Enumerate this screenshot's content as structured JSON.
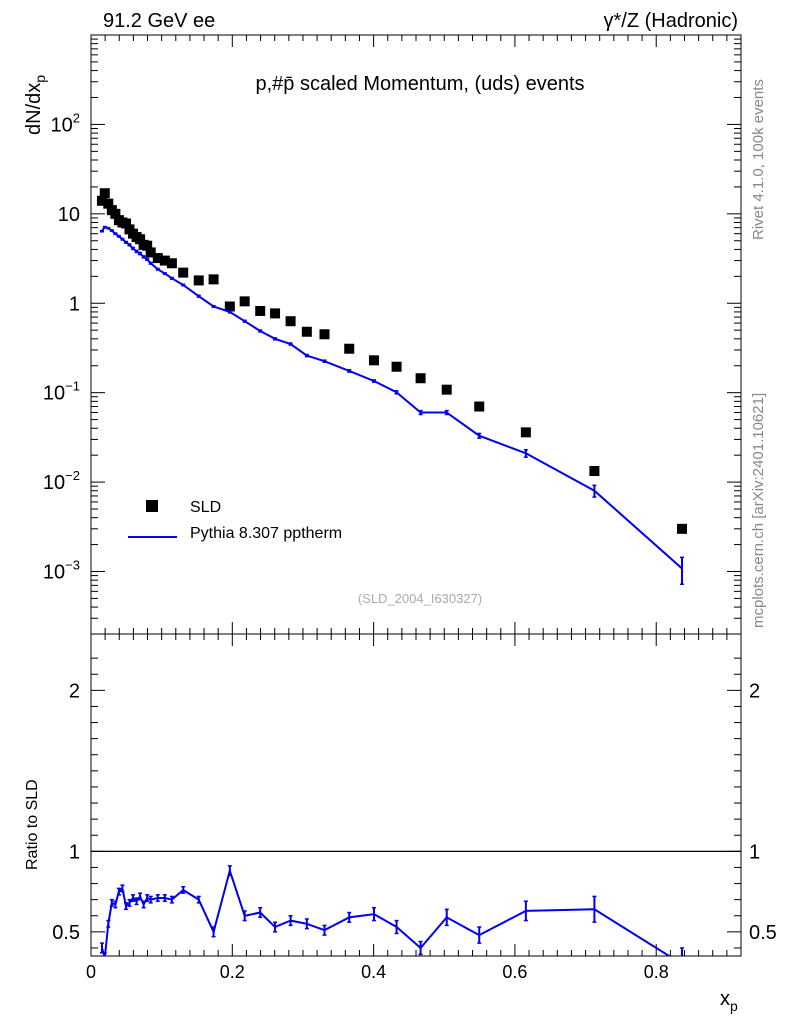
{
  "header": {
    "left": "91.2 GeV ee",
    "right": "γ*/Z (Hadronic)"
  },
  "side": {
    "rivet": "Rivet 4.1.0,  100k events",
    "mcplots": "mcplots.cern.ch [arXiv:2401.10621]"
  },
  "chart_data": [
    {
      "type": "scatter",
      "title": "p,#p̄ scaled Momentum, (uds) events",
      "ylabel": "dN/dx_p",
      "xlabel": "x_p",
      "ylog": true,
      "ylim": [
        0.0002,
        1000
      ],
      "xlim": [
        0,
        0.92
      ],
      "reference": "(SLD_2004_I630327)",
      "x_ticks": [
        "0",
        "0.2",
        "0.4",
        "0.6",
        "0.8"
      ],
      "x_tick_values": [
        0,
        0.2,
        0.4,
        0.6,
        0.8
      ],
      "y_ticks": [
        {
          "label": "10",
          "sup": "2",
          "value": 100
        },
        {
          "label": "10",
          "sup": "",
          "value": 10
        },
        {
          "label": "1",
          "sup": "",
          "value": 1
        },
        {
          "label": "10",
          "sup": "−1",
          "value": 0.1
        },
        {
          "label": "10",
          "sup": "−2",
          "value": 0.01
        },
        {
          "label": "10",
          "sup": "−3",
          "value": 0.001
        }
      ],
      "legend": [
        {
          "name": "SLD",
          "style": "marker"
        },
        {
          "name": "Pythia 8.307 pptherm",
          "style": "line"
        }
      ],
      "series": [
        {
          "name": "SLD",
          "color": "#000000",
          "x": [
            0.0155,
            0.0195,
            0.0245,
            0.0295,
            0.0345,
            0.0395,
            0.0445,
            0.0495,
            0.0545,
            0.0595,
            0.0645,
            0.0695,
            0.0745,
            0.0795,
            0.0845,
            0.0945,
            0.1045,
            0.1145,
            0.1305,
            0.1525,
            0.1735,
            0.1965,
            0.2175,
            0.2395,
            0.2605,
            0.2825,
            0.3055,
            0.3305,
            0.3655,
            0.4005,
            0.4325,
            0.4665,
            0.5035,
            0.5495,
            0.6155,
            0.7125,
            0.8365
          ],
          "y": [
            14,
            17,
            13,
            11,
            10,
            8.5,
            8,
            7.8,
            6.7,
            6.0,
            5.5,
            5.2,
            4.5,
            4.4,
            3.7,
            3.2,
            3.0,
            2.8,
            2.2,
            1.8,
            1.85,
            0.92,
            1.05,
            0.82,
            0.77,
            0.63,
            0.48,
            0.45,
            0.31,
            0.23,
            0.195,
            0.145,
            0.108,
            0.07,
            0.036,
            0.0133,
            0.003
          ]
        },
        {
          "name": "Pythia 8.307 pptherm",
          "color": "#0000ee",
          "x": [
            0.0155,
            0.0195,
            0.0245,
            0.0295,
            0.0345,
            0.0395,
            0.0445,
            0.0495,
            0.0545,
            0.0595,
            0.0645,
            0.0695,
            0.0745,
            0.0795,
            0.0845,
            0.0945,
            0.1045,
            0.1145,
            0.1305,
            0.1525,
            0.1735,
            0.1965,
            0.2175,
            0.2395,
            0.2605,
            0.2825,
            0.3055,
            0.3305,
            0.3655,
            0.4005,
            0.4325,
            0.4665,
            0.5035,
            0.5495,
            0.6155,
            0.7125,
            0.8365
          ],
          "y": [
            6.4,
            7.1,
            6.9,
            6.5,
            6.0,
            5.6,
            5.2,
            4.8,
            4.5,
            4.1,
            3.8,
            3.6,
            3.3,
            3.1,
            2.8,
            2.4,
            2.15,
            1.9,
            1.6,
            1.2,
            0.92,
            0.8,
            0.63,
            0.49,
            0.4,
            0.35,
            0.26,
            0.225,
            0.175,
            0.135,
            0.101,
            0.06,
            0.06,
            0.033,
            0.021,
            0.008,
            0.00108
          ],
          "err": [
            0.1,
            0.1,
            0.1,
            0.1,
            0.1,
            0.1,
            0.1,
            0.1,
            0.1,
            0.1,
            0.1,
            0.1,
            0.08,
            0.07,
            0.06,
            0.05,
            0.04,
            0.04,
            0.03,
            0.03,
            0.02,
            0.02,
            0.015,
            0.012,
            0.01,
            0.009,
            0.007,
            0.006,
            0.005,
            0.004,
            0.004,
            0.003,
            0.003,
            0.002,
            0.002,
            0.0012,
            0.00036
          ]
        }
      ]
    },
    {
      "type": "line",
      "ylabel": "Ratio to SLD",
      "ylim": [
        0.35,
        2.35
      ],
      "xlim": [
        0,
        0.92
      ],
      "reference_line": 1,
      "y_ticks": [
        "0.5",
        "1",
        "2"
      ],
      "y_tick_values": [
        0.5,
        1,
        2
      ],
      "series": [
        {
          "name": "Pythia 8.307 pptherm / SLD",
          "color": "#0000ee",
          "x": [
            0.0155,
            0.0195,
            0.0245,
            0.0295,
            0.0345,
            0.0395,
            0.0445,
            0.0495,
            0.0545,
            0.0595,
            0.0645,
            0.0695,
            0.0745,
            0.0795,
            0.0845,
            0.0945,
            0.1045,
            0.1145,
            0.1305,
            0.1525,
            0.1735,
            0.1965,
            0.2175,
            0.2395,
            0.2605,
            0.2825,
            0.3055,
            0.3305,
            0.3655,
            0.4005,
            0.4325,
            0.4665,
            0.5035,
            0.5495,
            0.6155,
            0.7125,
            0.8365
          ],
          "y": [
            0.4,
            0.34,
            0.55,
            0.68,
            0.67,
            0.75,
            0.77,
            0.66,
            0.68,
            0.71,
            0.69,
            0.72,
            0.67,
            0.71,
            0.7,
            0.71,
            0.71,
            0.7,
            0.76,
            0.7,
            0.5,
            0.88,
            0.6,
            0.62,
            0.53,
            0.57,
            0.55,
            0.51,
            0.59,
            0.61,
            0.53,
            0.4,
            0.59,
            0.48,
            0.63,
            0.64,
            0.3
          ],
          "err": [
            0.03,
            0.03,
            0.02,
            0.02,
            0.02,
            0.02,
            0.02,
            0.02,
            0.02,
            0.02,
            0.02,
            0.02,
            0.02,
            0.02,
            0.02,
            0.02,
            0.02,
            0.02,
            0.02,
            0.02,
            0.03,
            0.03,
            0.03,
            0.03,
            0.03,
            0.03,
            0.03,
            0.03,
            0.03,
            0.04,
            0.04,
            0.04,
            0.05,
            0.05,
            0.06,
            0.08,
            0.1
          ]
        }
      ]
    }
  ]
}
